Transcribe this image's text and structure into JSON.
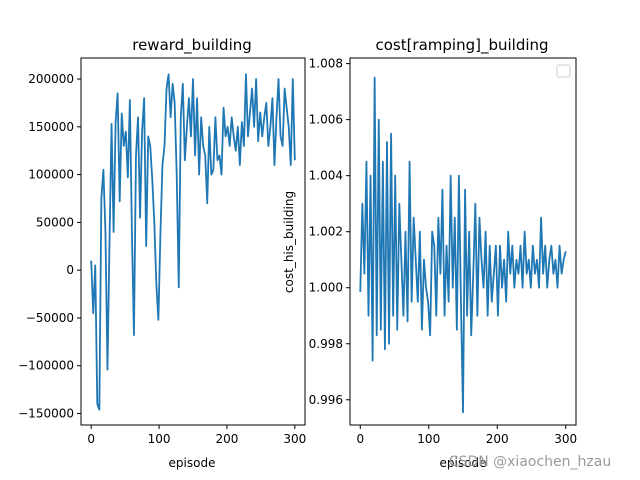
{
  "watermark": "CSDN @xiaochen_hzau",
  "chart_data": [
    {
      "type": "line",
      "title": "reward_building",
      "xlabel": "episode",
      "ylabel": "",
      "xlim": [
        -15,
        315
      ],
      "ylim": [
        -162000,
        222000
      ],
      "xticks": [
        0,
        100,
        200,
        300
      ],
      "xtick_labels": [
        "0",
        "100",
        "200",
        "300"
      ],
      "yticks": [
        -150000,
        -100000,
        -50000,
        0,
        50000,
        100000,
        150000,
        200000
      ],
      "ytick_labels": [
        "−150000",
        "−100000",
        "−50000",
        "0",
        "50000",
        "100000",
        "150000",
        "200000"
      ],
      "color": "#1f77b4",
      "legend": null,
      "series": [
        {
          "name": "reward_building",
          "x": [
            0,
            3,
            6,
            9,
            12,
            15,
            18,
            21,
            24,
            27,
            30,
            33,
            36,
            39,
            42,
            45,
            48,
            51,
            54,
            57,
            60,
            63,
            66,
            69,
            72,
            75,
            78,
            81,
            84,
            87,
            90,
            93,
            96,
            99,
            102,
            105,
            108,
            111,
            114,
            117,
            120,
            123,
            126,
            129,
            132,
            135,
            138,
            141,
            144,
            147,
            150,
            153,
            156,
            159,
            162,
            165,
            168,
            171,
            174,
            177,
            180,
            183,
            186,
            189,
            192,
            195,
            198,
            201,
            204,
            207,
            210,
            213,
            216,
            219,
            222,
            225,
            228,
            231,
            234,
            237,
            240,
            243,
            246,
            249,
            252,
            255,
            258,
            261,
            264,
            267,
            270,
            273,
            276,
            279,
            282,
            285,
            288,
            291,
            294,
            297,
            300
          ],
          "values": [
            10000,
            -45000,
            5000,
            -140000,
            -146000,
            75000,
            105000,
            40000,
            -104000,
            30000,
            153000,
            40000,
            155000,
            185000,
            72000,
            164000,
            130000,
            145000,
            97000,
            178000,
            40000,
            -68000,
            120000,
            160000,
            55000,
            145000,
            180000,
            25000,
            140000,
            130000,
            95000,
            50000,
            -15000,
            -52000,
            38000,
            110000,
            130000,
            190000,
            205000,
            160000,
            195000,
            175000,
            100000,
            -18000,
            160000,
            195000,
            115000,
            150000,
            180000,
            140000,
            200000,
            120000,
            180000,
            100000,
            160000,
            130000,
            120000,
            70000,
            150000,
            100000,
            105000,
            160000,
            115000,
            120000,
            100000,
            170000,
            140000,
            150000,
            130000,
            160000,
            140000,
            125000,
            150000,
            110000,
            155000,
            130000,
            205000,
            140000,
            165000,
            190000,
            150000,
            200000,
            135000,
            165000,
            140000,
            160000,
            175000,
            130000,
            150000,
            180000,
            110000,
            160000,
            200000,
            140000,
            130000,
            190000,
            170000,
            150000,
            110000,
            200000,
            115000
          ]
        }
      ]
    },
    {
      "type": "line",
      "title": "cost[ramping]_building",
      "xlabel": "episode",
      "ylabel": "cost_his_building",
      "xlim": [
        -15,
        315
      ],
      "ylim": [
        0.9951,
        1.0082
      ],
      "xticks": [
        0,
        100,
        200,
        300
      ],
      "xtick_labels": [
        "0",
        "100",
        "200",
        "300"
      ],
      "yticks": [
        0.996,
        0.998,
        1.0,
        1.002,
        1.004,
        1.006,
        1.008
      ],
      "ytick_labels": [
        "0.996",
        "0.998",
        "1.000",
        "1.002",
        "1.004",
        "1.006",
        "1.008"
      ],
      "color": "#1f77b4",
      "legend": "top-right (empty)",
      "series": [
        {
          "name": "cost_his_building",
          "x": [
            0,
            3,
            6,
            9,
            12,
            15,
            18,
            21,
            24,
            27,
            30,
            33,
            36,
            39,
            42,
            45,
            48,
            51,
            54,
            57,
            60,
            63,
            66,
            69,
            72,
            75,
            78,
            81,
            84,
            87,
            90,
            93,
            96,
            99,
            102,
            105,
            108,
            111,
            114,
            117,
            120,
            123,
            126,
            129,
            132,
            135,
            138,
            141,
            144,
            147,
            150,
            153,
            156,
            159,
            162,
            165,
            168,
            171,
            174,
            177,
            180,
            183,
            186,
            189,
            192,
            195,
            198,
            201,
            204,
            207,
            210,
            213,
            216,
            219,
            222,
            225,
            228,
            231,
            234,
            237,
            240,
            243,
            246,
            249,
            252,
            255,
            258,
            261,
            264,
            267,
            270,
            273,
            276,
            279,
            282,
            285,
            288,
            291,
            294,
            297,
            300
          ],
          "values": [
            0.99985,
            1.003,
            1.0005,
            1.0045,
            0.999,
            1.004,
            0.9974,
            1.0075,
            0.9983,
            1.006,
            0.9985,
            1.0045,
            0.9978,
            1.0052,
            0.998,
            1.0055,
            0.999,
            1.004,
            0.9985,
            1.003,
            1.001,
            0.999,
            1.002,
            0.9988,
            1.0045,
            0.9995,
            1.0025,
            1.001,
            0.9995,
            1.002,
            0.9985,
            1.001,
            1.0,
            0.9995,
            0.9983,
            1.002,
            1.0015,
            0.999,
            1.0025,
            1.0005,
            1.0035,
            0.999,
            1.0015,
            0.9995,
            1.004,
            1.0,
            1.0025,
            0.9985,
            1.004,
            0.9995,
            0.99555,
            1.0035,
            0.999,
            1.002,
            0.9983,
            1.0005,
            1.003,
            0.999,
            1.0025,
            1.001,
            1.0,
            1.002,
            0.999,
            1.0015,
            0.9995,
            1.0005,
            1.0015,
            0.999,
            1.0015,
            1.0,
            1.001,
            0.9995,
            1.002,
            1.0005,
            1.0015,
            1.0,
            1.001,
            1.0005,
            1.0015,
            1.0,
            1.002,
            1.0005,
            1.001,
            1.0,
            1.0015,
            1.0005,
            1.001,
            1.0,
            1.0025,
            1.0005,
            1.0015,
            1.0,
            1.001,
            1.0015,
            1.0005,
            1.001,
            1.0,
            1.0015,
            1.0005,
            1.001,
            1.0013
          ]
        }
      ]
    }
  ]
}
